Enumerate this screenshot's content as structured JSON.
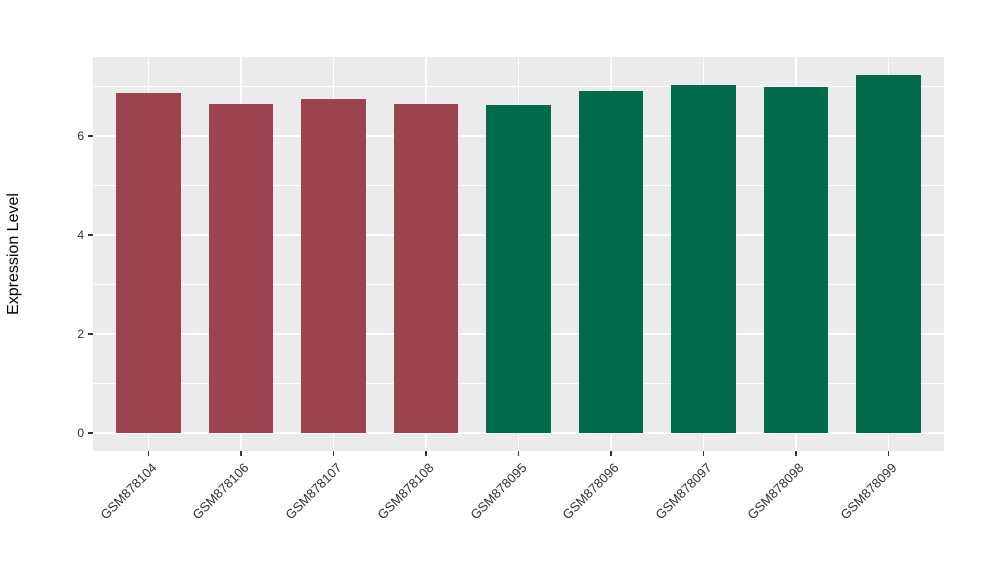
{
  "figure": {
    "background": "#FFFFFF",
    "panel_background": "#EBEBEB",
    "grid_color": "#FFFFFF",
    "tick_color": "#333333",
    "axis_text_color": "#303030",
    "axis_title_color": "#000000"
  },
  "chart_data": {
    "type": "bar",
    "title": "",
    "xlabel": "",
    "ylabel": "Expression Level",
    "categories": [
      "GSM878104",
      "GSM878106",
      "GSM878107",
      "GSM878108",
      "GSM878095",
      "GSM878096",
      "GSM878097",
      "GSM878098",
      "GSM878099"
    ],
    "values": [
      6.86,
      6.65,
      6.74,
      6.64,
      6.63,
      6.91,
      7.03,
      6.98,
      7.23
    ],
    "bar_colors": [
      "#9B4450",
      "#9B4450",
      "#9B4450",
      "#9B4450",
      "#016B4C",
      "#016B4C",
      "#016B4C",
      "#016B4C",
      "#016B4C"
    ],
    "group_colors": {
      "maroon_group": "#9B4450",
      "green_group": "#016B4C"
    },
    "ylim": [
      -0.36,
      7.59
    ],
    "yticks": [
      0,
      2,
      4,
      6
    ],
    "yticks_minor": [
      1,
      3,
      5,
      7
    ],
    "bar_width_fraction": 0.7,
    "x_expansion": 0.6,
    "grid": true,
    "legend": "none",
    "x_label_rotation_deg": 45
  }
}
